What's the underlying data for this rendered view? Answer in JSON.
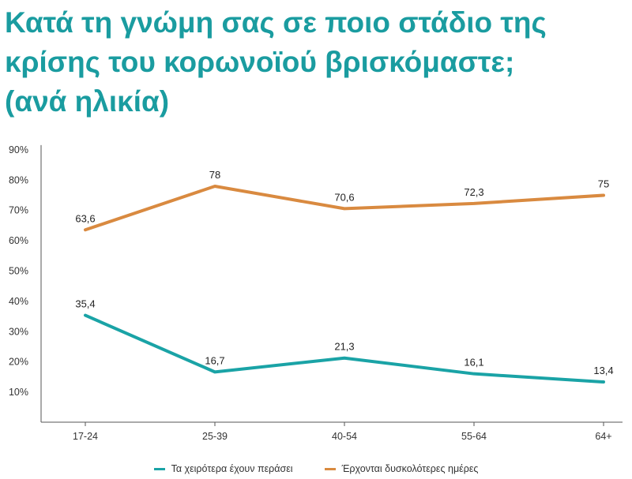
{
  "title_lines": [
    "Κατά τη γνώμη σας σε ποιο στάδιο της",
    "κρίσης του κορωνοϊού βρισκόμαστε;",
    "(ανά ηλικία)"
  ],
  "colors": {
    "title": "#1a9ca0",
    "series_a": "#1aa3a6",
    "series_b": "#d98a40"
  },
  "chart_data": {
    "type": "line",
    "title": "Κατά τη γνώμη σας σε ποιο στάδιο της κρίσης του κορωνοϊού βρισκόμαστε; (ανά ηλικία)",
    "categories": [
      "17-24",
      "25-39",
      "40-54",
      "55-64",
      "64+"
    ],
    "ylim": [
      0,
      90
    ],
    "yticks": [
      10,
      20,
      30,
      40,
      50,
      60,
      70,
      80,
      90
    ],
    "ytick_labels": [
      "10%",
      "20%",
      "30%",
      "40%",
      "50%",
      "60%",
      "70%",
      "80%",
      "90%"
    ],
    "grid": false,
    "legend_position": "bottom",
    "series": [
      {
        "name": "Τα χειρότερα έχουν περάσει",
        "values": [
          35.4,
          16.7,
          21.3,
          16.1,
          13.4
        ],
        "labels": [
          "35,4",
          "16,7",
          "21,3",
          "16,1",
          "13,4"
        ]
      },
      {
        "name": "Έρχονται δυσκολότερες ημέρες",
        "values": [
          63.6,
          78,
          70.6,
          72.3,
          75
        ],
        "labels": [
          "63,6",
          "78",
          "70,6",
          "72,3",
          "75"
        ]
      }
    ]
  }
}
